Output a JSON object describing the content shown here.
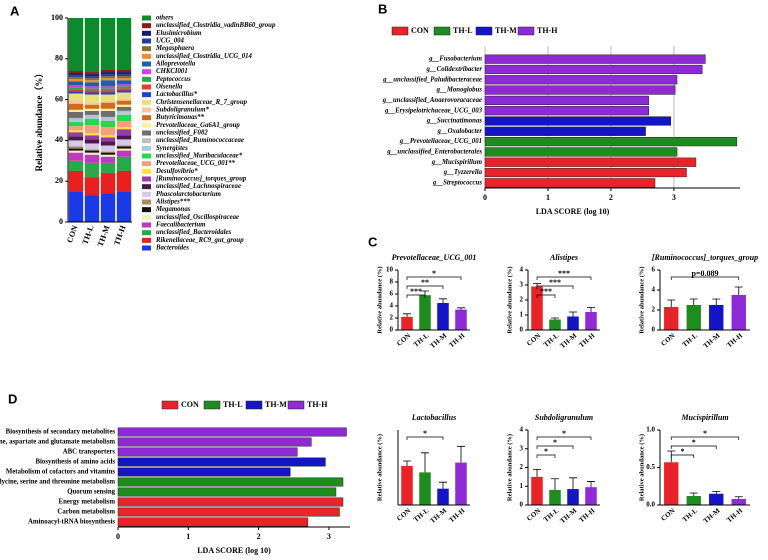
{
  "chart_data": [
    {
      "type": "stacked_bar",
      "panel": "A",
      "ylabel": "Relative abundance（%）",
      "categories": [
        "CON",
        "TH-L",
        "TH-M",
        "TH-H"
      ],
      "ylim": [
        0,
        100
      ],
      "yticks": [
        0,
        20,
        40,
        60,
        80,
        100
      ],
      "series": [
        {
          "name": "Bacteroides",
          "color": "#1a3ae8",
          "values": [
            15,
            13,
            14,
            15
          ]
        },
        {
          "name": "Rikenellaceae_RC9_gut_group",
          "color": "#e82020",
          "values": [
            10,
            9,
            10,
            10
          ]
        },
        {
          "name": "unclassified_Bacteroidales",
          "color": "#2aa84a",
          "values": [
            5,
            7,
            5,
            7
          ]
        },
        {
          "name": "Faecalibacterium",
          "color": "#c03ac0",
          "values": [
            4,
            4,
            3,
            3
          ]
        },
        {
          "name": "unclassified_Oscillospiraceae",
          "color": "#f0f0c0",
          "values": [
            1,
            1,
            1,
            1
          ]
        },
        {
          "name": "Megamonas",
          "color": "#111111",
          "values": [
            1,
            1,
            1,
            1
          ]
        },
        {
          "name": "Alistipes***",
          "color": "#a88a5a",
          "values": [
            1,
            0.5,
            0.5,
            0.5
          ],
          "label_color": "#e02020"
        },
        {
          "name": "Phascolarctobacterium",
          "color": "#d8c8e8",
          "values": [
            3,
            3,
            3,
            3
          ]
        },
        {
          "name": "unclassified_Lachnospiraceae",
          "color": "#4a1a4a",
          "values": [
            2,
            2,
            2,
            2
          ]
        },
        {
          "name": "[Ruminococcus]_torques_group",
          "color": "#9a3aa8",
          "values": [
            2,
            2,
            2,
            3
          ],
          "label_color": "#e02020"
        },
        {
          "name": "Desulfovibrio*",
          "color": "#f5e83a",
          "values": [
            1,
            1,
            1,
            1
          ]
        },
        {
          "name": "Prevotellaceae_UCG_001**",
          "color": "#f5a07a",
          "values": [
            2,
            4,
            4,
            3
          ],
          "label_color": "#e02020"
        },
        {
          "name": "unclassified_Muribaculaceae*",
          "color": "#2bd64a",
          "values": [
            2,
            3,
            3,
            3
          ],
          "label_color": "#e02020"
        },
        {
          "name": "Synergistes",
          "color": "#a8c8e8",
          "values": [
            1,
            1,
            1,
            1
          ]
        },
        {
          "name": "unclassified_Ruminococcaceae",
          "color": "#bfbfbf",
          "values": [
            1,
            1,
            1,
            1
          ]
        },
        {
          "name": "unclassified_F082",
          "color": "#6e6e6e",
          "values": [
            3,
            2,
            3,
            2
          ]
        },
        {
          "name": "Prevotellaceae_Ga6A1_group",
          "color": "#fff3a0",
          "values": [
            1,
            1,
            1,
            1
          ]
        },
        {
          "name": "Butyricimonas**",
          "color": "#d46a1a",
          "values": [
            3,
            2,
            3,
            2
          ]
        },
        {
          "name": "Subdoligranulum*",
          "color": "#f3c99a",
          "values": [
            2,
            1,
            1,
            1
          ],
          "label_color": "#e02020"
        },
        {
          "name": "Christensenellaceae_R_7_group",
          "color": "#e8e07a",
          "values": [
            3,
            4,
            3,
            3
          ]
        },
        {
          "name": "Lactobacillus*",
          "color": "#1f3fd0",
          "values": [
            1,
            1,
            1,
            1
          ],
          "label_color": "#e02020"
        },
        {
          "name": "Olsenella",
          "color": "#e8382f",
          "values": [
            1,
            1,
            1,
            1
          ]
        },
        {
          "name": "Peptococcus",
          "color": "#2aa84a",
          "values": [
            1,
            1,
            1,
            1
          ]
        },
        {
          "name": "CHKCI001",
          "color": "#e03ae0",
          "values": [
            1,
            1,
            1,
            1
          ]
        },
        {
          "name": "Alloprevotella",
          "color": "#1e5fa8",
          "values": [
            2,
            2,
            3,
            2
          ]
        },
        {
          "name": "unclassified_Clostridia_UCG_014",
          "color": "#f28c28",
          "values": [
            1,
            1,
            1,
            1
          ]
        },
        {
          "name": "Megasphaera",
          "color": "#8b6b2e",
          "values": [
            1,
            1,
            1,
            1
          ]
        },
        {
          "name": "UCG_004",
          "color": "#1f3f9f",
          "values": [
            1,
            1,
            1,
            1
          ]
        },
        {
          "name": "Elusimicrobium",
          "color": "#1a1a6e",
          "values": [
            1,
            1,
            1,
            1
          ]
        },
        {
          "name": "unclassified_Clostridia_vadinBB60_group",
          "color": "#8b1a1a",
          "values": [
            1,
            1,
            1,
            1
          ]
        },
        {
          "name": "others",
          "color": "#0d8a2c",
          "values": [
            26,
            26.5,
            25.5,
            25.5
          ]
        }
      ]
    },
    {
      "type": "horizontal_bar",
      "panel": "B",
      "xlabel": "LDA SCORE (log 10)",
      "grid": true,
      "italic": true,
      "categories": [
        "g__Fusobacterium",
        "g__Colidextribacter",
        "g__unclassified_Paludibacteraceae",
        "g__Monoglobus",
        "g__unclassified_Anaerovoracaceae",
        "g__Erysipelotrichaceae_UCG_003",
        "g__Succinatimonas",
        "g__Oxalobacter",
        "g__Prevotellaceae_UCG_001",
        "g__unclassified_Enterobacterales",
        "g__Mucispirillum",
        "g__Tyzzerella",
        "g__Streptococcus"
      ],
      "xlim": [
        0,
        4.05
      ],
      "xticks": [
        0,
        1,
        2,
        3
      ],
      "series": [
        {
          "name": "CON",
          "color": "#e8242a",
          "values": [
            null,
            null,
            null,
            null,
            null,
            null,
            null,
            null,
            null,
            null,
            3.35,
            3.2,
            2.7
          ]
        },
        {
          "name": "TH-L",
          "color": "#1e8c1e",
          "values": [
            null,
            null,
            null,
            null,
            null,
            null,
            null,
            null,
            4.0,
            3.05,
            null,
            null,
            null
          ]
        },
        {
          "name": "TH-M",
          "color": "#1515c8",
          "values": [
            null,
            null,
            null,
            null,
            null,
            null,
            2.95,
            2.55,
            null,
            null,
            null,
            null,
            null
          ]
        },
        {
          "name": "TH-H",
          "color": "#8e2ad6",
          "values": [
            3.5,
            3.45,
            3.05,
            3.02,
            2.6,
            2.6,
            null,
            null,
            null,
            null,
            null,
            null,
            null
          ]
        }
      ]
    },
    {
      "type": "bar",
      "panel": "C",
      "title": "Prevotellaceae_UCG_001",
      "ylabel": "Relative abundance (%)",
      "categories": [
        "CON",
        "TH-L",
        "TH-M",
        "TH-H"
      ],
      "colors": [
        "#e8242a",
        "#1e8c1e",
        "#1515c8",
        "#8e2ad6"
      ],
      "values": [
        2.2,
        5.8,
        4.5,
        3.4
      ],
      "errors": [
        0.5,
        0.7,
        0.7,
        0.3
      ],
      "ylim": [
        0,
        10
      ],
      "yticks": [
        0,
        2,
        4,
        6,
        8,
        10
      ],
      "significance": [
        {
          "from": "CON",
          "to": "TH-L",
          "label": "***"
        },
        {
          "from": "CON",
          "to": "TH-M",
          "label": "**"
        },
        {
          "from": "CON",
          "to": "TH-H",
          "label": "*"
        }
      ]
    },
    {
      "type": "bar",
      "title": "Alistipes",
      "ylabel": "Relative abundance (%)",
      "categories": [
        "CON",
        "TH-L",
        "TH-M",
        "TH-H"
      ],
      "colors": [
        "#e8242a",
        "#1e8c1e",
        "#1515c8",
        "#8e2ad6"
      ],
      "values": [
        2.9,
        0.7,
        0.9,
        1.2
      ],
      "errors": [
        0.2,
        0.1,
        0.3,
        0.3
      ],
      "ylim": [
        0,
        4
      ],
      "yticks": [
        0,
        1,
        2,
        3,
        4
      ],
      "significance": [
        {
          "from": "CON",
          "to": "TH-L",
          "label": "***"
        },
        {
          "from": "CON",
          "to": "TH-M",
          "label": "***"
        },
        {
          "from": "CON",
          "to": "TH-H",
          "label": "***"
        }
      ]
    },
    {
      "type": "bar",
      "title": "[Ruminococcus]_torques_group",
      "ylabel": "Relative abundance (%)",
      "categories": [
        "CON",
        "TH-L",
        "TH-M",
        "TH-H"
      ],
      "colors": [
        "#e8242a",
        "#1e8c1e",
        "#1515c8",
        "#8e2ad6"
      ],
      "values": [
        2.3,
        2.5,
        2.5,
        3.5
      ],
      "errors": [
        0.7,
        0.6,
        0.6,
        0.8
      ],
      "ylim": [
        0,
        6
      ],
      "yticks": [
        0,
        2,
        4,
        6
      ],
      "significance": [
        {
          "from": "CON",
          "to": "TH-H",
          "label": "p=0.089"
        }
      ]
    },
    {
      "type": "bar",
      "title": "Lactobacillus",
      "ylabel": "Relative abundance (%)",
      "categories": [
        "CON",
        "TH-L",
        "TH-M",
        "TH-H"
      ],
      "colors": [
        "#e8242a",
        "#1e8c1e",
        "#1515c8",
        "#8e2ad6"
      ],
      "values": [
        1.2,
        1.0,
        0.5,
        1.3
      ],
      "errors": [
        0.15,
        0.6,
        0.2,
        0.5
      ],
      "ylim": [
        0,
        2.3
      ],
      "significance": [
        {
          "from": "CON",
          "to": "TH-M",
          "label": "*"
        }
      ]
    },
    {
      "type": "bar",
      "title": "Subdoligranulum",
      "ylabel": "Relative abundance (%)",
      "categories": [
        "CON",
        "TH-L",
        "TH-M",
        "TH-H"
      ],
      "colors": [
        "#e8242a",
        "#1e8c1e",
        "#1515c8",
        "#8e2ad6"
      ],
      "values": [
        1.5,
        0.8,
        0.85,
        0.95
      ],
      "errors": [
        0.4,
        0.6,
        0.6,
        0.3
      ],
      "ylim": [
        0,
        4
      ],
      "yticks": [
        0,
        1,
        2,
        3,
        4
      ],
      "significance": [
        {
          "from": "CON",
          "to": "TH-L",
          "label": "*"
        },
        {
          "from": "CON",
          "to": "TH-M",
          "label": "*"
        },
        {
          "from": "CON",
          "to": "TH-H",
          "label": "*"
        }
      ]
    },
    {
      "type": "bar",
      "title": "Mucispirillum",
      "ylabel": "Relative abundance (%)",
      "categories": [
        "CON",
        "TH-L",
        "TH-M",
        "TH-H"
      ],
      "colors": [
        "#e8242a",
        "#1e8c1e",
        "#1515c8",
        "#8e2ad6"
      ],
      "values": [
        0.57,
        0.12,
        0.15,
        0.08
      ],
      "errors": [
        0.15,
        0.04,
        0.03,
        0.03
      ],
      "ylim": [
        0,
        1
      ],
      "yticks": [
        {
          "value": 0,
          "label": "0.0"
        },
        0.5,
        {
          "value": 1,
          "label": "1.0"
        }
      ],
      "significance": [
        {
          "from": "CON",
          "to": "TH-L",
          "label": "*"
        },
        {
          "from": "CON",
          "to": "TH-M",
          "label": "*"
        },
        {
          "from": "CON",
          "to": "TH-H",
          "label": "*"
        }
      ]
    },
    {
      "type": "horizontal_bar",
      "panel": "D",
      "xlabel": "LDA SCORE (log 10)",
      "grid": false,
      "italic": false,
      "categories": [
        "Biosynthesis of secondary metabolites",
        "Alanine, aspartate and glutamate metabolism",
        "ABC transporters",
        "Biosynthesis of amino acids",
        "Metabolism of cofactors and vitamins",
        "Glycine, serine and threonine metabolism",
        "Quorum sensing",
        "Energy metabolism",
        "Carbon metabolism",
        "Aminoacyl-tRNA biosynthesis"
      ],
      "label_colors": [
        "#000000",
        "#e02020",
        "#000000",
        "#e02020",
        "#000000",
        "#e02020",
        "#000000",
        "#000000",
        "#000000",
        "#000000"
      ],
      "xlim": [
        0,
        3.3
      ],
      "xticks": [
        0,
        1,
        2,
        3
      ],
      "series": [
        {
          "name": "CON",
          "color": "#e8242a",
          "values": [
            null,
            null,
            null,
            null,
            null,
            null,
            null,
            3.2,
            3.15,
            2.7
          ]
        },
        {
          "name": "TH-L",
          "color": "#1e8c1e",
          "values": [
            null,
            null,
            null,
            null,
            null,
            3.2,
            3.1,
            null,
            null,
            null
          ]
        },
        {
          "name": "TH-M",
          "color": "#1515c8",
          "values": [
            null,
            null,
            null,
            2.95,
            2.45,
            null,
            null,
            null,
            null,
            null
          ]
        },
        {
          "name": "TH-H",
          "color": "#8e2ad6",
          "values": [
            3.25,
            2.75,
            2.55,
            null,
            null,
            null,
            null,
            null,
            null,
            null
          ]
        }
      ]
    }
  ]
}
